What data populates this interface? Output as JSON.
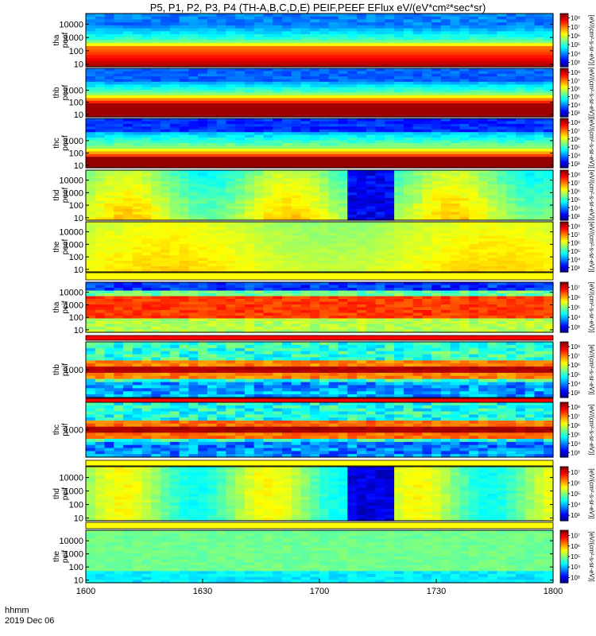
{
  "figure": {
    "title": "P5, P1, P2, P3, P4 (TH-A,B,C,D,E) PEIF,PEEF EFlux eV/(eV*cm²*sec*sr)",
    "footer_label_line1": "hhmm",
    "footer_label_line2": "2019 Dec 06"
  },
  "chart_data": {
    "type": "heatmap",
    "x_axis": {
      "ticks": [
        "1600",
        "1630",
        "1700",
        "1730",
        "1800"
      ],
      "tick_times_utc": [
        "16:00",
        "16:30",
        "17:00",
        "17:30",
        "18:00"
      ],
      "range": [
        "16:00",
        "18:00"
      ]
    },
    "colorbar_title": "[eV/(cm²-s-sr-eV)]",
    "panels": [
      {
        "probe_label": "tha",
        "product_label": "peef",
        "y_ticks": [
          "10",
          "100",
          "1000",
          "10000"
        ],
        "colorbar_ticks": [
          "10³",
          "10⁴",
          "10⁵",
          "10⁶",
          "10⁷",
          "10⁸"
        ],
        "notes": "electron energy flux, red band ~10-30 eV"
      },
      {
        "probe_label": "thb",
        "product_label": "peef",
        "y_ticks": [
          "10",
          "100",
          "1000"
        ],
        "colorbar_ticks": [
          "10³",
          "10⁴",
          "10⁵",
          "10⁶",
          "10⁷",
          "10⁸"
        ],
        "notes": "electron energy flux, red band ~10-30 eV"
      },
      {
        "probe_label": "thc",
        "product_label": "peef",
        "y_ticks": [
          "10",
          "100",
          "1000"
        ],
        "colorbar_ticks": [
          "10³",
          "10⁴",
          "10⁵",
          "10⁶",
          "10⁷",
          "10⁸"
        ],
        "notes": "electron energy flux, red band near 10 eV"
      },
      {
        "probe_label": "thd",
        "product_label": "peef",
        "y_ticks": [
          "10",
          "100",
          "1000",
          "10000"
        ],
        "colorbar_ticks": [
          "10³",
          "10⁴",
          "10⁵",
          "10⁶",
          "10⁷",
          "10⁸"
        ],
        "notes": "data dropout ~17:03-17:16"
      },
      {
        "probe_label": "the",
        "product_label": "peef",
        "y_ticks": [
          "10",
          "100",
          "1000",
          "10000"
        ],
        "colorbar_ticks": [
          "10³",
          "10⁴",
          "10⁵",
          "10⁶",
          "10⁷",
          "10⁸"
        ],
        "notes": "uniform yellow-green"
      },
      {
        "probe_label": "tha",
        "product_label": "peif",
        "y_ticks": [
          "10",
          "100",
          "1000",
          "10000"
        ],
        "colorbar_ticks": [
          "10³",
          "10⁴",
          "10⁵",
          "10⁶",
          "10⁷"
        ],
        "notes": "ion energy flux, orange band ~100-1000 eV"
      },
      {
        "probe_label": "thb",
        "product_label": "peif",
        "y_ticks": [
          "1000"
        ],
        "colorbar_ticks": [
          "10³",
          "10⁴",
          "10⁵",
          "10⁶",
          "10⁷",
          "10⁸"
        ],
        "notes": "red band near 1000 eV"
      },
      {
        "probe_label": "thc",
        "product_label": "peif",
        "y_ticks": [
          "1000"
        ],
        "colorbar_ticks": [
          "10³",
          "10⁴",
          "10⁵",
          "10⁶",
          "10⁷",
          "10⁸"
        ],
        "notes": "red band near 1000 eV"
      },
      {
        "probe_label": "thd",
        "product_label": "peif",
        "y_ticks": [
          "10",
          "100",
          "1000",
          "10000"
        ],
        "colorbar_ticks": [
          "10³",
          "10⁴",
          "10⁵",
          "10⁶",
          "10⁷"
        ],
        "notes": "data dropout ~17:03-17:16"
      },
      {
        "probe_label": "the",
        "product_label": "peif",
        "y_ticks": [
          "10",
          "100",
          "1000",
          "10000"
        ],
        "colorbar_ticks": [
          "10³",
          "10⁴",
          "10⁵",
          "10⁶",
          "10⁷"
        ],
        "notes": "green, cyan at low energy"
      }
    ]
  }
}
